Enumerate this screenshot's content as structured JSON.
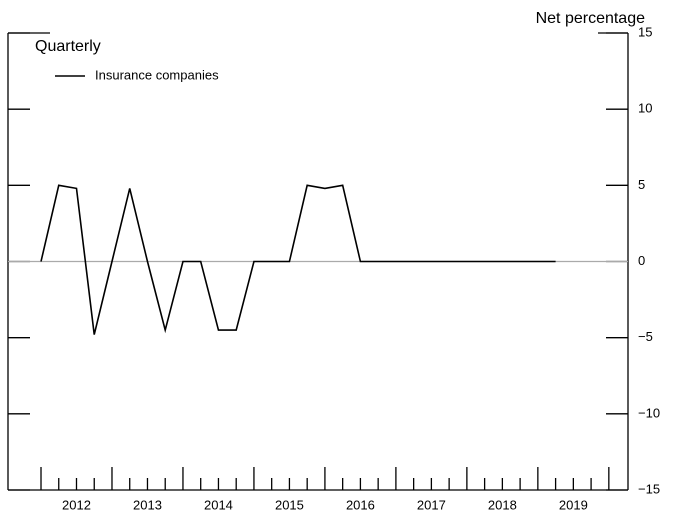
{
  "chart_data": {
    "type": "line",
    "title": "Quarterly",
    "y_label": "Net percentage",
    "x": [
      2012,
      2012.25,
      2012.5,
      2012.75,
      2013,
      2013.25,
      2013.5,
      2013.75,
      2014,
      2014.25,
      2014.5,
      2014.75,
      2015,
      2015.25,
      2015.5,
      2015.75,
      2016,
      2016.25,
      2016.5,
      2016.75,
      2017,
      2017.25,
      2017.5,
      2017.75,
      2018,
      2018.25,
      2018.5,
      2018.75,
      2019,
      2019.25
    ],
    "series": [
      {
        "name": "Insurance companies",
        "color": "#000000",
        "values": [
          0,
          5,
          4.8,
          -4.8,
          0,
          4.8,
          0,
          -4.5,
          0,
          0,
          -4.5,
          -4.5,
          0,
          0,
          0,
          5,
          4.8,
          5,
          0,
          0,
          0,
          0,
          0,
          0,
          0,
          0,
          0,
          0,
          0,
          0
        ]
      }
    ],
    "xlim": [
      2011.535,
      2020.27
    ],
    "xticks": [
      {
        "value": 2012.5,
        "label": "2012"
      },
      {
        "value": 2013.5,
        "label": "2013"
      },
      {
        "value": 2014.5,
        "label": "2014"
      },
      {
        "value": 2015.5,
        "label": "2015"
      },
      {
        "value": 2016.5,
        "label": "2016"
      },
      {
        "value": 2017.5,
        "label": "2017"
      },
      {
        "value": 2018.5,
        "label": "2018"
      },
      {
        "value": 2019.5,
        "label": "2019"
      }
    ],
    "xticks_major": [
      2012,
      2013,
      2014,
      2015,
      2016,
      2017,
      2018,
      2019,
      2020
    ],
    "ylim": [
      -15,
      15
    ],
    "yticks": [
      {
        "value": -15,
        "label": "−15"
      },
      {
        "value": -10,
        "label": "−10"
      },
      {
        "value": -5,
        "label": "−5"
      },
      0,
      5,
      10,
      15
    ],
    "zero_line_color": "#aaaaaa"
  }
}
